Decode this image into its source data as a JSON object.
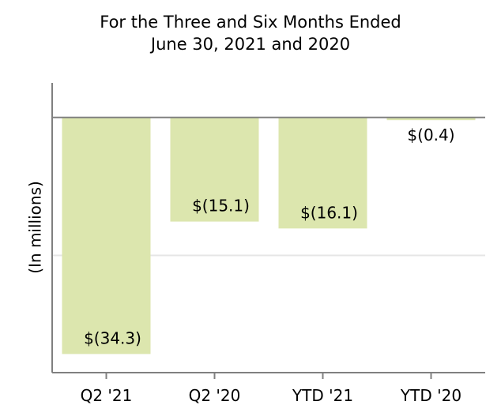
{
  "chart_data": {
    "type": "bar",
    "title": [
      "For the Three and Six Months Ended",
      "June 30, 2021 and 2020"
    ],
    "xlabel": "",
    "ylabel": "(In millions)",
    "categories": [
      "Q2 '21",
      "Q2 '20",
      "YTD '21",
      "YTD '20"
    ],
    "values": [
      -34.3,
      -15.1,
      -16.1,
      -0.4
    ],
    "data_labels": [
      "$(34.3)",
      "$(15.1)",
      "$(16.1)",
      "$(0.4)"
    ],
    "ylim": [
      -37,
      5
    ],
    "gridlines": [
      -20
    ],
    "grid": true,
    "legend": "none",
    "colors": {
      "bar": "#dce6ae",
      "axis": "#808080",
      "zero_line": "#808080",
      "gridline": "#e6e6e6",
      "text": "#000000"
    }
  }
}
